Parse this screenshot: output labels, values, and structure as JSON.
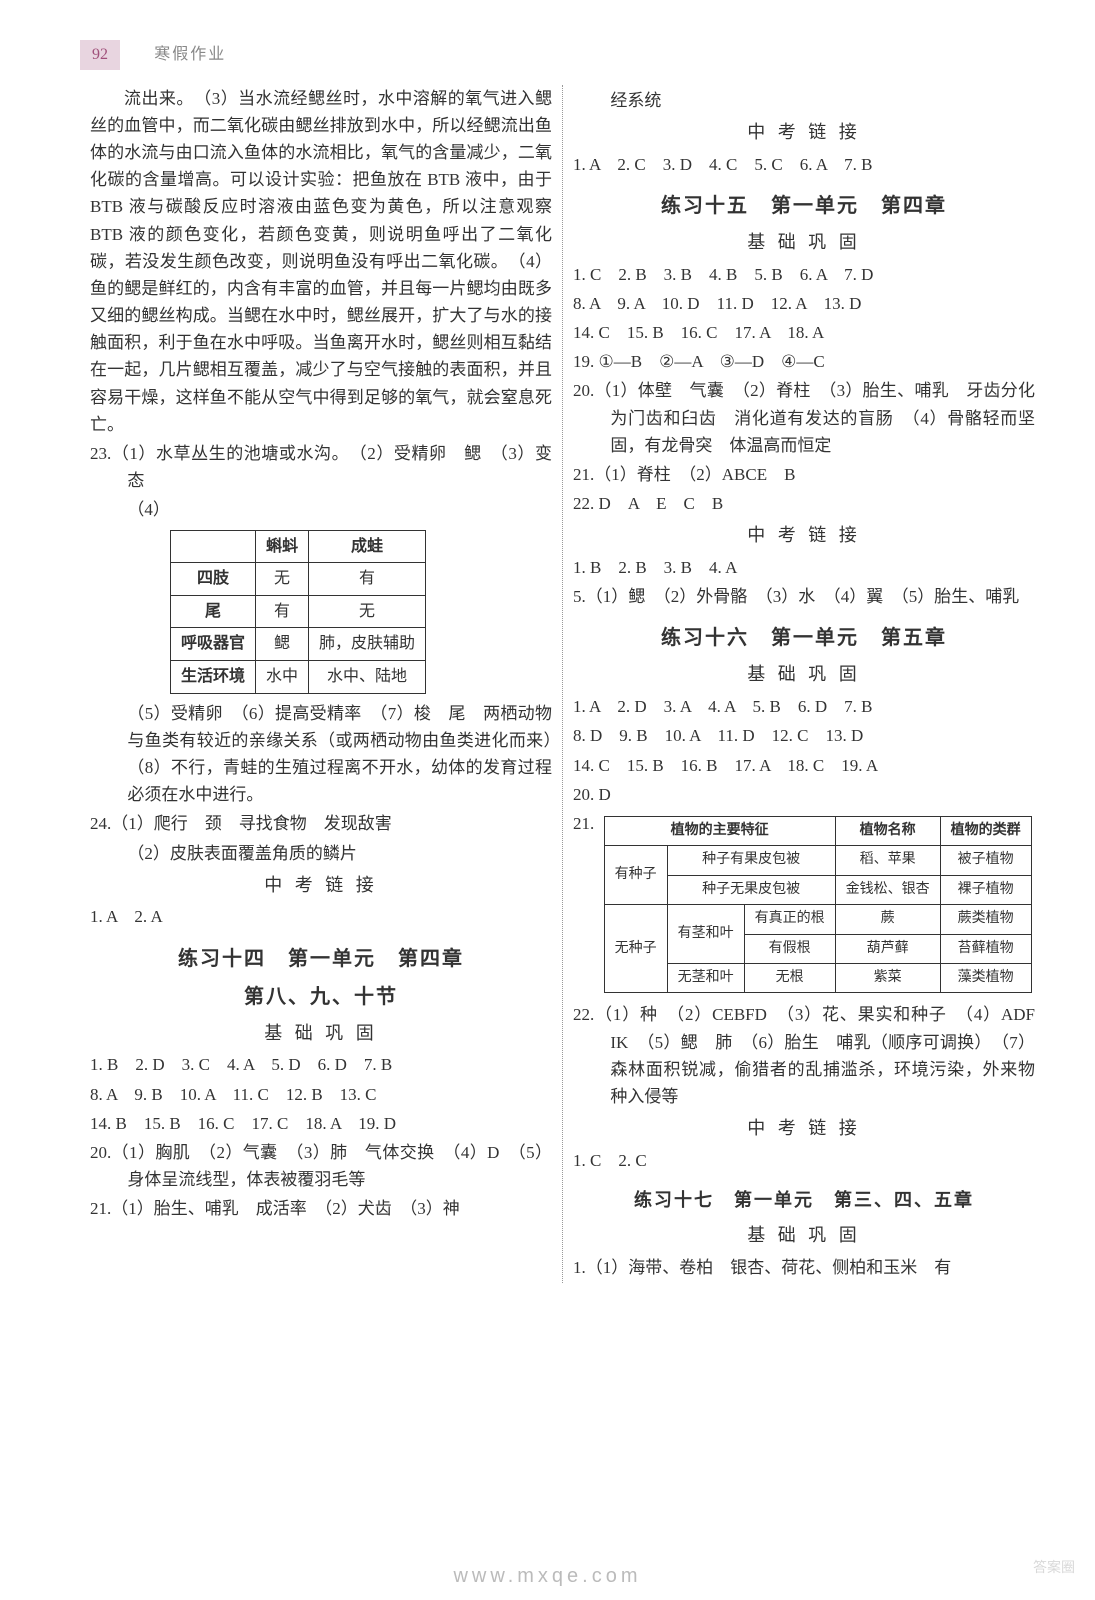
{
  "header": {
    "page_number": "92",
    "title": "寒假作业"
  },
  "left": {
    "passage_intro": "流出来。　（3）当水流经鳃丝时，水中溶解的氧气进入鳃丝的血管中，而二氧化碳由鳃丝排放到水中，所以经鳃流出鱼体的水流与由口流入鱼体的水流相比，氧气的含量减少，二氧化碳的含量增高。可以设计实验：把鱼放在 BTB 液中，由于 BTB 液与碳酸反应时溶液由蓝色变为黄色，所以注意观察 BTB 液的颜色变化，若颜色变黄，则说明鱼呼出了二氧化碳，若没发生颜色改变，则说明鱼没有呼出二氧化碳。　（4）鱼的鳃是鲜红的，内含有丰富的血管，并且每一片鳃均由既多又细的鳃丝构成。当鳃在水中时，鳃丝展开，扩大了与水的接触面积，利于鱼在水中呼吸。当鱼离开水时，鳃丝则相互黏结在一起，几片鳃相互覆盖，减少了与空气接触的表面积，并且容易干燥，这样鱼不能从空气中得到足够的氧气，就会窒息死亡。",
    "q23_line1": "23.（1）水草丛生的池塘或水沟。　（2）受精卵　鳃　（3）变态",
    "q23_line2": "（4）",
    "table23": {
      "headers": [
        "",
        "蝌蚪",
        "成蛙"
      ],
      "rows": [
        [
          "四肢",
          "无",
          "有"
        ],
        [
          "尾",
          "有",
          "无"
        ],
        [
          "呼吸器官",
          "鳃",
          "肺，皮肤辅助"
        ],
        [
          "生活环境",
          "水中",
          "水中、陆地"
        ]
      ]
    },
    "q23_tail": "（5）受精卵　（6）提高受精率　（7）梭　尾　两栖动物与鱼类有较近的亲缘关系（或两栖动物由鱼类进化而来）　（8）不行，青蛙的生殖过程离不开水，幼体的发育过程必须在水中进行。",
    "q24_l1": "24.（1）爬行　颈　寻找食物　发现敌害",
    "q24_l2": "（2）皮肤表面覆盖角质的鳞片",
    "zk_title": "中 考 链 接",
    "zk_line": "1. A　2. A",
    "ex14_title": "练习十四　第一单元　第四章",
    "ex14_sub": "第八、九、十节",
    "jichu": "基 础 巩 固",
    "ex14_a1": "1. B　2. D　3. C　4. A　5. D　6. D　7. B",
    "ex14_a2": "8. A　9. B　10. A　11. C　12. B　13. C",
    "ex14_a3": "14. B　15. B　16. C　17. C　18. A　19. D",
    "ex14_q20": "20.（1）胸肌　（2）气囊　（3）肺　气体交换　（4）D　（5）身体呈流线型，体表被覆羽毛等",
    "ex14_q21": "21.（1）胎生、哺乳　成活率　（2）犬齿　（3）神"
  },
  "right": {
    "top_trail": "经系统",
    "zk_title": "中 考 链 接",
    "zk14_line": "1. A　2. C　3. D　4. C　5. C　6. A　7. B",
    "ex15_title": "练习十五　第一单元　第四章",
    "jichu": "基 础 巩 固",
    "ex15_a1": "1. C　2. B　3. B　4. B　5. B　6. A　7. D",
    "ex15_a2": "8. A　9. A　10. D　11. D　12. A　13. D",
    "ex15_a3": "14. C　15. B　16. C　17. A　18. A",
    "ex15_a4": "19. ①—B　②—A　③—D　④—C",
    "ex15_q20": "20.（1）体壁　气囊　（2）脊柱　（3）胎生、哺乳　牙齿分化为门齿和臼齿　消化道有发达的盲肠　（4）骨骼轻而坚固，有龙骨突　体温高而恒定",
    "ex15_q21": "21.（1）脊柱　（2）ABCE　B",
    "ex15_q22": "22. D　A　E　C　B",
    "zk15_l1": "1. B　2. B　3. B　4. A",
    "zk15_l2": "5.（1）鳃　（2）外骨骼　（3）水　（4）翼　（5）胎生、哺乳",
    "ex16_title": "练习十六　第一单元　第五章",
    "ex16_a1": "1. A　2. D　3. A　4. A　5. B　6. D　7. B",
    "ex16_a2": "8. D　9. B　10. A　11. D　12. C　13. D",
    "ex16_a3": "14. C　15. B　16. B　17. A　18. C　19. A",
    "ex16_a4": "20. D",
    "q21_label": "21.",
    "table21": {
      "head": [
        "",
        "植物的主要特征",
        "植物名称",
        "植物的类群"
      ],
      "r1": [
        "有种子",
        "种子有果皮包被",
        "稻、苹果",
        "被子植物"
      ],
      "r2": [
        "",
        "种子无果皮包被",
        "金钱松、银杏",
        "裸子植物"
      ],
      "r3a": [
        "无种子",
        "有茎和叶",
        "有真正的根",
        "蕨",
        "蕨类植物"
      ],
      "r3b": [
        "",
        "",
        "有假根",
        "葫芦藓",
        "苔藓植物"
      ],
      "r4": [
        "",
        "无茎和叶",
        "无根",
        "紫菜",
        "藻类植物"
      ]
    },
    "ex16_q22": "22.（1）种　（2）CEBFD　（3）花、果实和种子　（4）ADF　IK　（5）鳃　肺　（6）胎生　哺乳（顺序可调换）　（7）森林面积锐减，偷猎者的乱捕滥杀，环境污染，外来物种入侵等",
    "zk16_line": "1. C　2. C",
    "ex17_title": "练习十七　第一单元　第三、四、五章",
    "ex17_q1": "1.（1）海带、卷柏　银杏、荷花、侧柏和玉米　有"
  },
  "watermark": {
    "brand": "答案圈",
    "url": "www.mxqe.com"
  }
}
